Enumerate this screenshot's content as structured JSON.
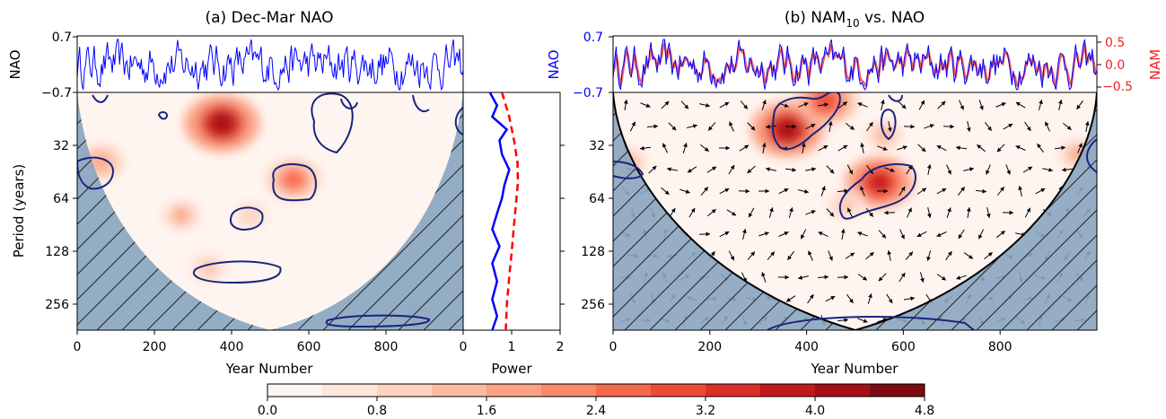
{
  "chart_data": [
    {
      "id": "a",
      "type": "heatmap",
      "title": "(a) Dec-Mar NAO",
      "xlabel": "Year Number",
      "ylabel": "Period (years)",
      "top_ylabel": "NAO",
      "xlim": [
        0,
        1000
      ],
      "xticks": [
        "0",
        "200",
        "400",
        "600",
        "800",
        "0"
      ],
      "period_ticks": [
        "32",
        "64",
        "128",
        "256"
      ],
      "top_yticks": [
        "0.7",
        "−0.7"
      ],
      "nao_series_color": "#0000ff",
      "contour_color": "#1a237e",
      "cone_fill": "#8aa6c1",
      "power_hotspots": [
        {
          "year": 375,
          "period": 24,
          "power": 4.2
        },
        {
          "year": 560,
          "period": 50,
          "power": 2.6
        },
        {
          "year": 60,
          "period": 40,
          "power": 1.9
        },
        {
          "year": 270,
          "period": 80,
          "power": 1.6
        },
        {
          "year": 450,
          "period": 80,
          "power": 1.1
        },
        {
          "year": 340,
          "period": 160,
          "power": 1.3
        },
        {
          "year": 880,
          "period": 300,
          "power": 0.8
        }
      ]
    },
    {
      "id": "global_power",
      "type": "line",
      "xlabel": "Power",
      "xticks": [
        "0",
        "1",
        "2"
      ],
      "xlim": [
        0,
        2
      ],
      "series": [
        {
          "color": "#0000ff",
          "style": "solid",
          "points": [
            [
              0.55,
              16
            ],
            [
              0.7,
              19
            ],
            [
              0.6,
              22
            ],
            [
              0.9,
              26
            ],
            [
              0.75,
              30
            ],
            [
              0.8,
              36
            ],
            [
              0.95,
              44
            ],
            [
              0.85,
              54
            ],
            [
              0.8,
              64
            ],
            [
              0.7,
              78
            ],
            [
              0.6,
              96
            ],
            [
              0.75,
              120
            ],
            [
              0.6,
              150
            ],
            [
              0.7,
              190
            ],
            [
              0.6,
              240
            ],
            [
              0.7,
              300
            ],
            [
              0.6,
              360
            ]
          ]
        },
        {
          "color": "#ff0000",
          "style": "dashed",
          "points": [
            [
              0.8,
              16
            ],
            [
              0.95,
              22
            ],
            [
              1.05,
              30
            ],
            [
              1.12,
              40
            ],
            [
              1.13,
              52
            ],
            [
              1.1,
              64
            ],
            [
              1.05,
              90
            ],
            [
              1.0,
              130
            ],
            [
              0.95,
              180
            ],
            [
              0.9,
              260
            ],
            [
              0.88,
              360
            ]
          ]
        }
      ]
    },
    {
      "id": "b",
      "type": "heatmap",
      "title": "(b) NAM",
      "title_sub": "10",
      "title_suffix": " vs. NAO",
      "xlabel": "Year Number",
      "top_ylabel_left": "NAO",
      "top_ylabel_right": "NAM",
      "xlim": [
        0,
        1000
      ],
      "xticks": [
        "0",
        "200",
        "400",
        "600",
        "800"
      ],
      "period_ticks": [
        "32",
        "64",
        "128",
        "256"
      ],
      "top_yticks_left": [
        "0.7",
        "−0.7"
      ],
      "top_yticks_right": [
        "0.5",
        "0.0",
        "−0.5"
      ],
      "nao_series_color": "#0000ff",
      "nam_series_color": "#ee4444",
      "contour_color": "#1a237e",
      "cone_fill": "#8aa6c1",
      "coherence_hotspots": [
        {
          "year": 360,
          "period": 26,
          "power": 4.0
        },
        {
          "year": 440,
          "period": 18,
          "power": 3.0
        },
        {
          "year": 550,
          "period": 52,
          "power": 3.6
        },
        {
          "year": 560,
          "period": 28,
          "power": 1.5
        },
        {
          "year": 30,
          "period": 40,
          "power": 1.6
        },
        {
          "year": 960,
          "period": 36,
          "power": 1.6
        },
        {
          "year": 480,
          "period": 70,
          "power": 1.4
        }
      ]
    }
  ],
  "colorbar": {
    "ticks": [
      "0.0",
      "0.8",
      "1.6",
      "2.4",
      "3.2",
      "4.0",
      "4.8"
    ],
    "levels": 12,
    "min": 0.0,
    "max": 4.8,
    "colors": [
      "#fff5f0",
      "#fee6dc",
      "#fdd2bf",
      "#fcbba1",
      "#fca183",
      "#fc8969",
      "#f7694b",
      "#ef4a35",
      "#da2f28",
      "#c2191d",
      "#a50f15",
      "#7d0a10"
    ]
  }
}
